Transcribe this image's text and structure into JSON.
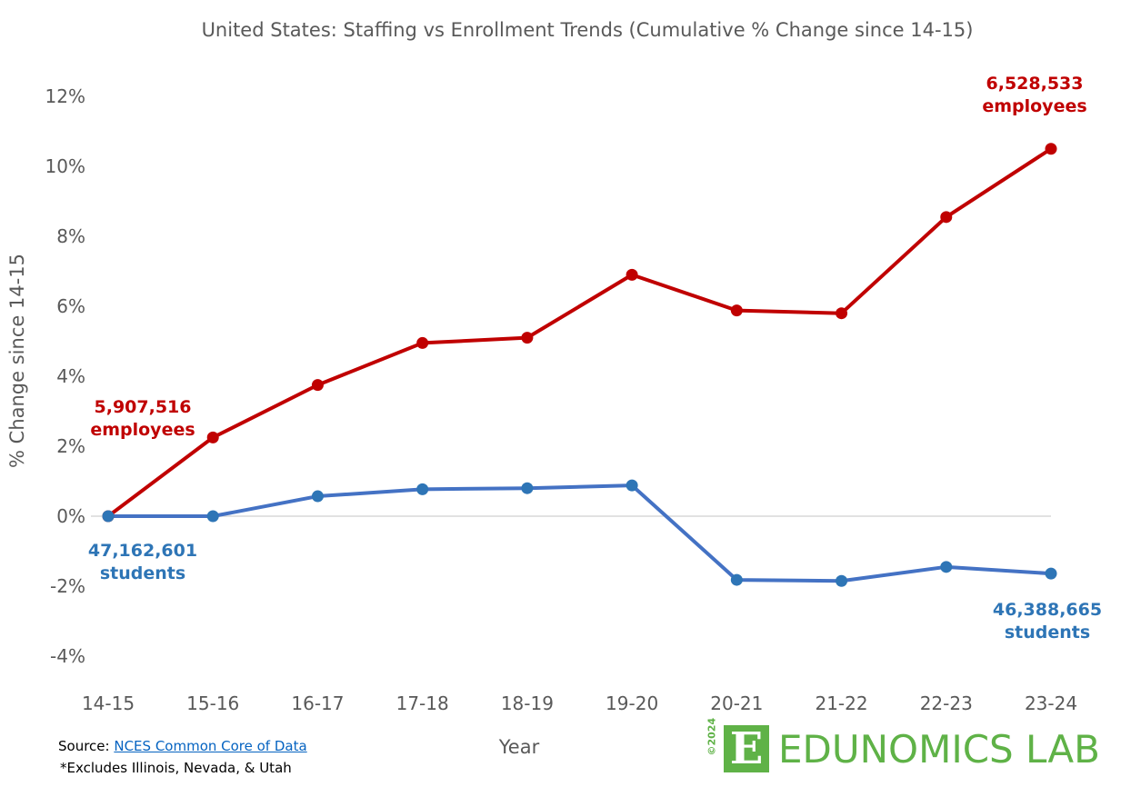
{
  "chart_data": {
    "type": "line",
    "title": "United States: Staffing vs Enrollment Trends (Cumulative % Change since 14-15)",
    "xlabel": "Year",
    "ylabel": "% Change since 14-15",
    "categories": [
      "14-15",
      "15-16",
      "16-17",
      "17-18",
      "18-19",
      "19-20",
      "20-21",
      "21-22",
      "22-23",
      "23-24"
    ],
    "ylim": [
      -4,
      12
    ],
    "yticks": [
      -4,
      -2,
      0,
      2,
      4,
      6,
      8,
      10,
      12
    ],
    "ytick_labels": [
      "-4%",
      "-2%",
      "0%",
      "2%",
      "4%",
      "6%",
      "8%",
      "10%",
      "12%"
    ],
    "grid": false,
    "zero_line": true,
    "series": [
      {
        "key": "employees",
        "color": "#c00000",
        "values": [
          0,
          2.25,
          3.75,
          4.95,
          5.1,
          6.9,
          5.88,
          5.8,
          8.55,
          10.5
        ]
      },
      {
        "key": "students",
        "color": "#4472c4",
        "marker_color": "#2e75b6",
        "values": [
          0,
          0,
          0.57,
          0.77,
          0.8,
          0.88,
          -1.82,
          -1.85,
          -1.45,
          -1.64
        ]
      }
    ],
    "annotations": [
      {
        "id": "emp-start",
        "lines": [
          "5,907,516",
          "employees"
        ],
        "color": "#c00000"
      },
      {
        "id": "emp-end",
        "lines": [
          "6,528,533",
          "employees"
        ],
        "color": "#c00000"
      },
      {
        "id": "stu-start",
        "lines": [
          "47,162,601",
          "students"
        ],
        "color": "#2e75b6"
      },
      {
        "id": "stu-end",
        "lines": [
          "46,388,665",
          "students"
        ],
        "color": "#2e75b6"
      }
    ]
  },
  "footer": {
    "source_label": "Source:",
    "source_link": "NCES Common  Core of Data",
    "note": "*Excludes Illinois, Nevada, & Utah"
  },
  "logo": {
    "year": "©2024",
    "letter": "E",
    "text": "EDUNOMICS LAB",
    "color": "#5fb247"
  }
}
